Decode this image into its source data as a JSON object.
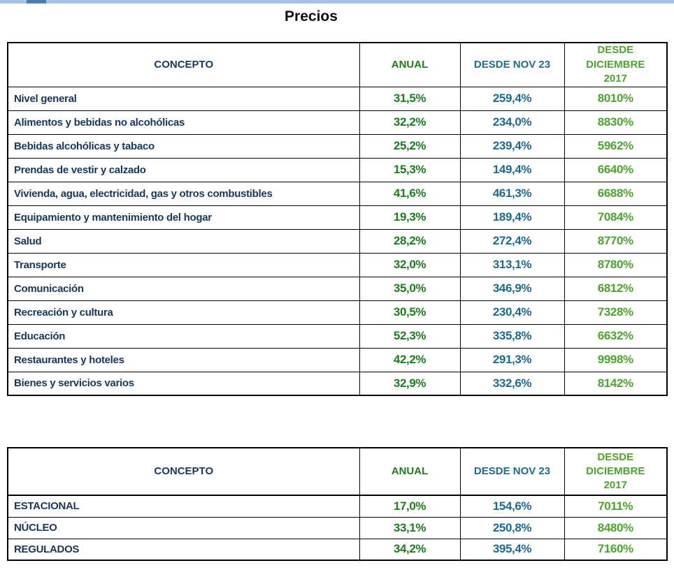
{
  "title": "Precios",
  "colors": {
    "label_navy": "#17375d",
    "anual_green": "#1e7c1e",
    "nov_teal": "#1f698e",
    "dic_green": "#4da32f",
    "scrollbar_track": "#a7c3e3",
    "scrollbar_thumb": "#4e7cb4"
  },
  "tables": [
    {
      "headers": {
        "concepto": "CONCEPTO",
        "anual": "ANUAL",
        "desde_nov": "DESDE NOV 23",
        "desde_dic": "DESDE DICIEMBRE 2017"
      },
      "rows": [
        {
          "concepto": "Nivel general",
          "anual": "31,5%",
          "desde_nov": "259,4%",
          "desde_dic": "8010%"
        },
        {
          "concepto": "Alimentos y bebidas no alcohólicas",
          "anual": "32,2%",
          "desde_nov": "234,0%",
          "desde_dic": "8830%"
        },
        {
          "concepto": "Bebidas alcohólicas y tabaco",
          "anual": "25,2%",
          "desde_nov": "239,4%",
          "desde_dic": "5962%"
        },
        {
          "concepto": "Prendas de vestir y calzado",
          "anual": "15,3%",
          "desde_nov": "149,4%",
          "desde_dic": "6640%"
        },
        {
          "concepto": "Vivienda, agua, electricidad, gas y otros combustibles",
          "anual": "41,6%",
          "desde_nov": "461,3%",
          "desde_dic": "6688%"
        },
        {
          "concepto": "Equipamiento y mantenimiento del hogar",
          "anual": "19,3%",
          "desde_nov": "189,4%",
          "desde_dic": "7084%"
        },
        {
          "concepto": "Salud",
          "anual": "28,2%",
          "desde_nov": "272,4%",
          "desde_dic": "8770%"
        },
        {
          "concepto": "Transporte",
          "anual": "32,0%",
          "desde_nov": "313,1%",
          "desde_dic": "8780%"
        },
        {
          "concepto": "Comunicación",
          "anual": "35,0%",
          "desde_nov": "346,9%",
          "desde_dic": "6812%"
        },
        {
          "concepto": "Recreación y cultura",
          "anual": "30,5%",
          "desde_nov": "230,4%",
          "desde_dic": "7328%"
        },
        {
          "concepto": "Educación",
          "anual": "52,3%",
          "desde_nov": "335,8%",
          "desde_dic": "6632%"
        },
        {
          "concepto": "Restaurantes y hoteles",
          "anual": "42,2%",
          "desde_nov": "291,3%",
          "desde_dic": "9998%"
        },
        {
          "concepto": "Bienes y servicios varios",
          "anual": "32,9%",
          "desde_nov": "332,6%",
          "desde_dic": "8142%"
        }
      ]
    },
    {
      "headers": {
        "concepto": "CONCEPTO",
        "anual": "ANUAL",
        "desde_nov": "DESDE NOV 23",
        "desde_dic": "DESDE DICIEMBRE 2017"
      },
      "rows": [
        {
          "concepto": "ESTACIONAL",
          "anual": "17,0%",
          "desde_nov": "154,6%",
          "desde_dic": "7011%"
        },
        {
          "concepto": "NÚCLEO",
          "anual": "33,1%",
          "desde_nov": "250,8%",
          "desde_dic": "8480%"
        },
        {
          "concepto": "REGULADOS",
          "anual": "34,2%",
          "desde_nov": "395,4%",
          "desde_dic": "7160%"
        }
      ]
    }
  ]
}
